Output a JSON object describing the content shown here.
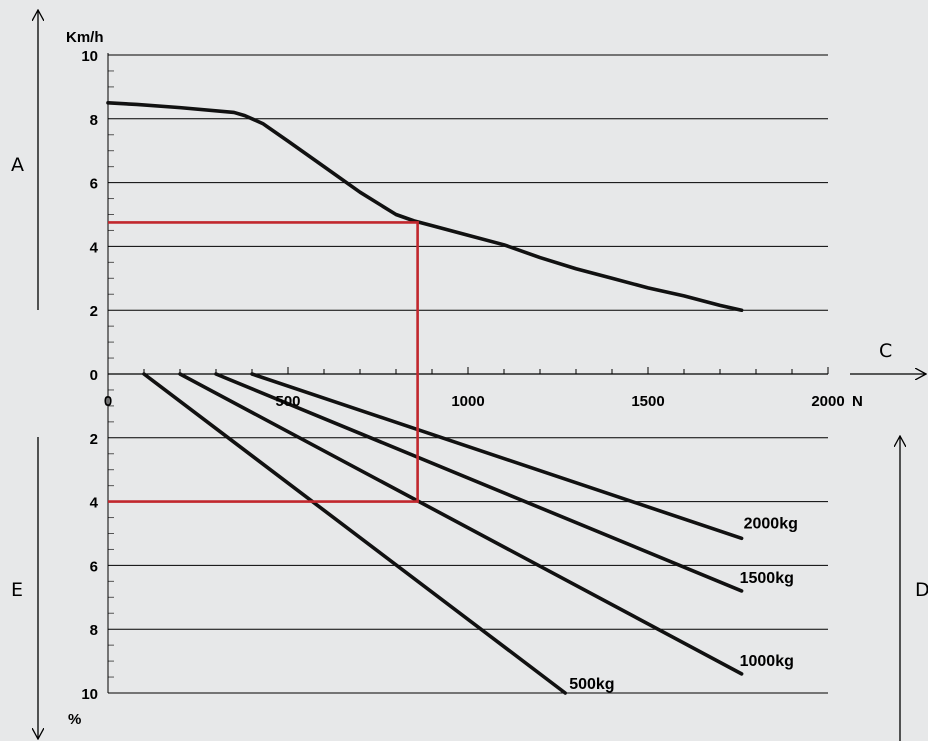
{
  "chart_data": {
    "type": "line",
    "background_color": "#e7e8e9",
    "x_axis": {
      "unit": "N",
      "range": [
        0,
        2000
      ],
      "ticks": [
        0,
        500,
        1000,
        1500,
        2000
      ],
      "tick_labels": [
        "0",
        "500",
        "1000",
        "1500",
        "2000"
      ]
    },
    "upper_panel": {
      "unit_label": "Km/h",
      "y_range": [
        0,
        10
      ],
      "ticks": [
        0,
        2,
        4,
        6,
        8,
        10
      ],
      "tick_labels": [
        "0",
        "2",
        "4",
        "6",
        "8",
        "10"
      ],
      "series": [
        {
          "x": [
            0,
            80,
            200,
            350,
            380,
            430,
            500,
            600,
            700,
            800,
            850,
            900,
            1000,
            1100,
            1200,
            1300,
            1400,
            1500,
            1600,
            1700,
            1760
          ],
          "y": [
            8.5,
            8.45,
            8.35,
            8.2,
            8.1,
            7.85,
            7.3,
            6.5,
            5.7,
            5.0,
            4.8,
            4.65,
            4.35,
            4.05,
            3.65,
            3.3,
            3.0,
            2.7,
            2.45,
            2.15,
            2.0
          ]
        }
      ]
    },
    "lower_panel": {
      "unit_label": "%",
      "y_range": [
        0,
        10
      ],
      "inverted": true,
      "ticks": [
        2,
        4,
        6,
        8,
        10
      ],
      "tick_labels": [
        "2",
        "4",
        "6",
        "8",
        "10"
      ],
      "series": [
        {
          "name": "500kg",
          "x": [
            100,
            1270
          ],
          "y": [
            0,
            10
          ]
        },
        {
          "name": "1000kg",
          "x": [
            200,
            1760
          ],
          "y": [
            0,
            9.4
          ]
        },
        {
          "name": "1500kg",
          "x": [
            300,
            1760
          ],
          "y": [
            0,
            6.8
          ]
        },
        {
          "name": "2000kg",
          "x": [
            400,
            1760
          ],
          "y": [
            0,
            5.15
          ]
        }
      ]
    },
    "example_path": {
      "color": "#c1272d",
      "upper_y": 4.75,
      "x": 860,
      "lower_y": 4
    },
    "side_labels": {
      "A": "A",
      "C": "C",
      "D": "D",
      "E": "E"
    },
    "grid": true
  }
}
